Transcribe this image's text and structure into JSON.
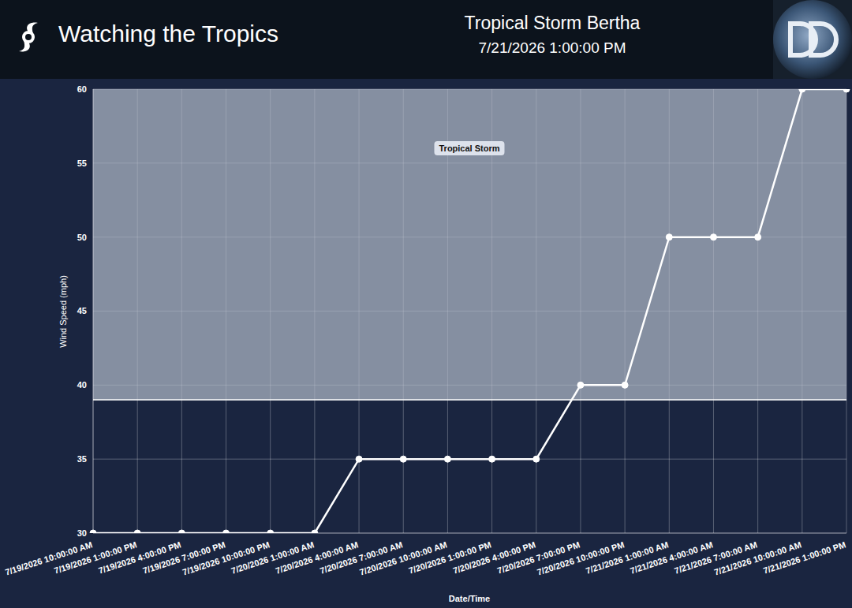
{
  "header": {
    "site_title": "Watching the Tropics"
  },
  "chart_data": {
    "type": "line",
    "title": "Tropical Storm Bertha",
    "subtitle": "7/21/2026 1:00:00 PM",
    "x_label": "Date/Time",
    "y_label": "Wind Speed (mph)",
    "categories": [
      "7/19/2026 10:00:00 AM",
      "7/19/2026 1:00:00 PM",
      "7/19/2026 4:00:00 PM",
      "7/19/2026 7:00:00 PM",
      "7/19/2026 10:00:00 PM",
      "7/20/2026 1:00:00 AM",
      "7/20/2026 4:00:00 AM",
      "7/20/2026 7:00:00 AM",
      "7/20/2026 10:00:00 AM",
      "7/20/2026 1:00:00 PM",
      "7/20/2026 4:00:00 PM",
      "7/20/2026 7:00:00 PM",
      "7/20/2026 10:00:00 PM",
      "7/21/2026 1:00:00 AM",
      "7/21/2026 4:00:00 AM",
      "7/21/2026 7:00:00 AM",
      "7/21/2026 10:00:00 AM",
      "7/21/2026 1:00:00 PM"
    ],
    "values": [
      30,
      30,
      30,
      30,
      30,
      30,
      35,
      35,
      35,
      35,
      35,
      40,
      40,
      50,
      50,
      50,
      60,
      60
    ],
    "color": "#ffffff",
    "marker": "circle",
    "ylim": [
      30,
      60
    ],
    "yticks": [
      30,
      35,
      40,
      45,
      50,
      55,
      60
    ],
    "grid": true,
    "threshold": {
      "value": 39,
      "label": "Tropical Storm"
    }
  }
}
